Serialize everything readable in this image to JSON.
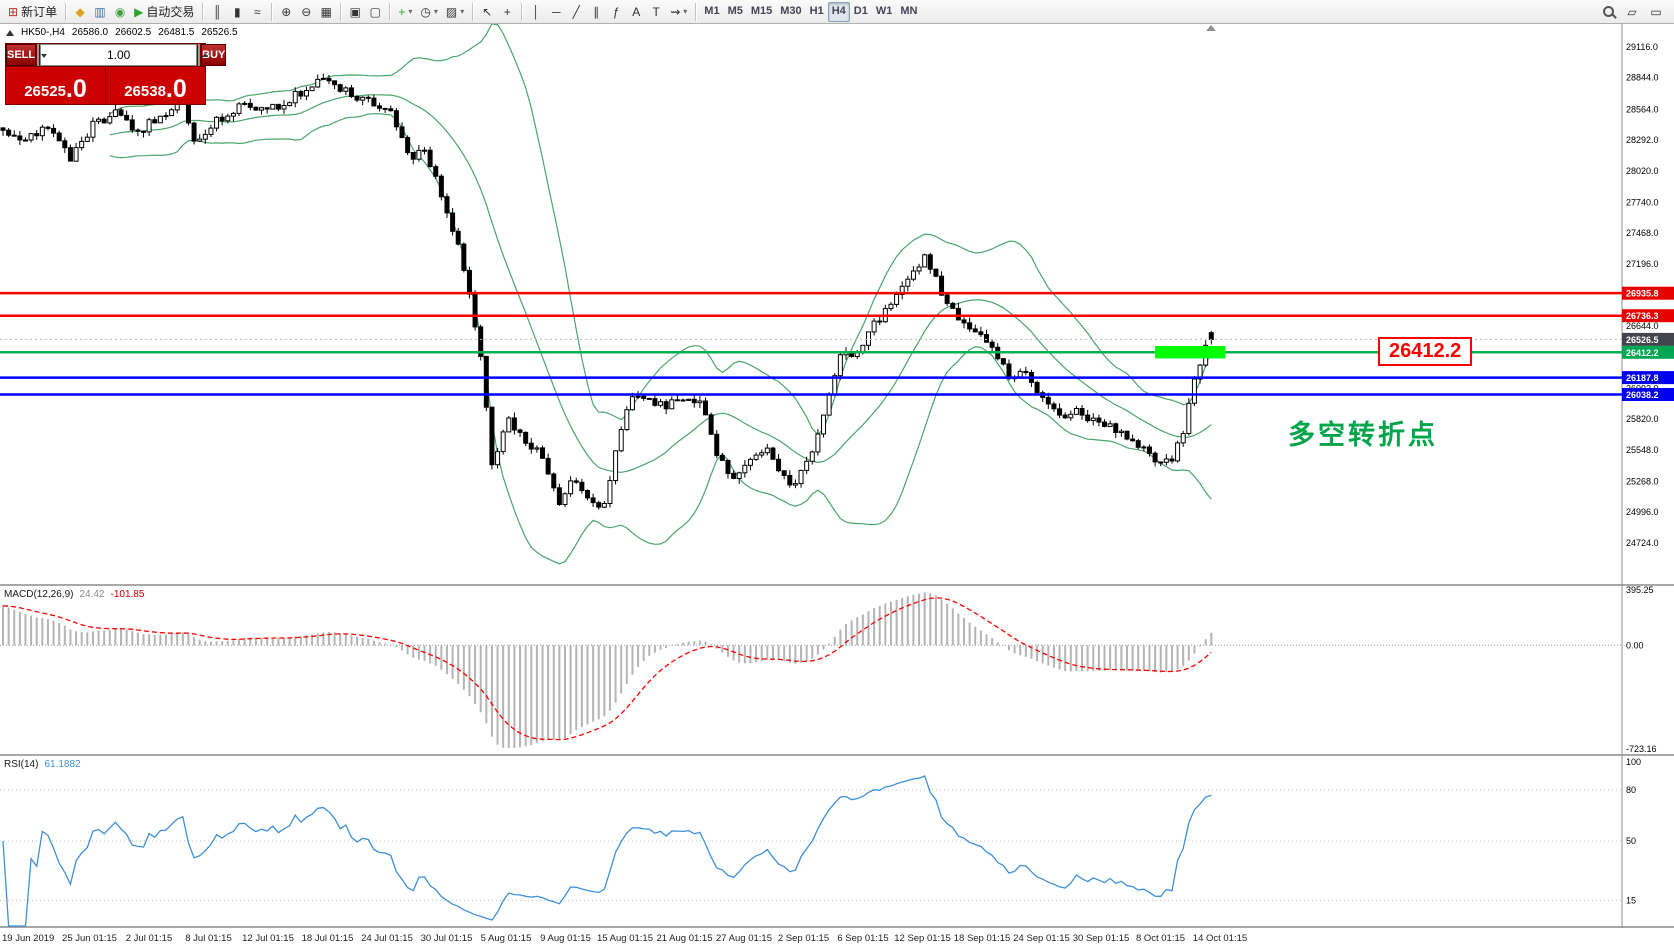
{
  "colors": {
    "panel_red": "#cc0000",
    "line_red": "#ff0000",
    "line_blue": "#0000ff",
    "line_green": "#00b050",
    "highlight_green": "#00ff00",
    "bollinger_green": "#4aa56a",
    "rsi_blue": "#3e8fd8",
    "macd_histogram_gray": "#b4b4b4",
    "macd_signal_red": "#ff0000"
  },
  "toolbar": {
    "dropdown_glyph": "▾",
    "items": [
      {
        "name": "new-order-button",
        "glyph": "⊞",
        "color": "#c03030",
        "label": "新订单"
      },
      {
        "type": "sep"
      },
      {
        "name": "profiles-icon",
        "glyph": "◆",
        "color": "#dfa220"
      },
      {
        "name": "charts-icon",
        "glyph": "▥",
        "color": "#4a6fa5"
      },
      {
        "name": "refresh-icon",
        "glyph": "◉",
        "color": "#3f9e3f"
      },
      {
        "name": "autotrading-button",
        "glyph": "▶",
        "color": "#2fa52f",
        "label": "自动交易"
      },
      {
        "type": "sep"
      },
      {
        "name": "bar-chart-icon",
        "glyph": "║"
      },
      {
        "name": "candlestick-chart-icon",
        "glyph": "▮"
      },
      {
        "name": "line-chart-icon",
        "glyph": "≈"
      },
      {
        "type": "sep"
      },
      {
        "name": "zoom-in-icon",
        "glyph": "⊕"
      },
      {
        "name": "zoom-out-icon",
        "glyph": "⊖"
      },
      {
        "name": "tile-windows-icon",
        "glyph": "▦"
      },
      {
        "type": "sep"
      },
      {
        "name": "auto-arrange-icon",
        "glyph": "▣"
      },
      {
        "name": "cascade-windows-icon",
        "glyph": "▢"
      },
      {
        "type": "sep"
      },
      {
        "name": "add-indicator-button",
        "glyph": "+",
        "color": "#2fa52f",
        "dropdown": true
      },
      {
        "name": "period-selector-button",
        "glyph": "◷",
        "dropdown": true
      },
      {
        "name": "template-button",
        "glyph": "▨",
        "dropdown": true
      },
      {
        "type": "sep"
      },
      {
        "name": "cursor-icon",
        "glyph": "↖"
      },
      {
        "name": "crosshair-icon",
        "glyph": "+"
      },
      {
        "type": "sep"
      },
      {
        "name": "vertical-line-icon",
        "glyph": "│"
      },
      {
        "name": "horizontal-line-icon",
        "glyph": "─"
      },
      {
        "name": "trendline-icon",
        "glyph": "╱"
      },
      {
        "name": "channel-icon",
        "glyph": "∥"
      },
      {
        "name": "fibonacci-icon",
        "glyph": "ƒ"
      },
      {
        "name": "text-icon",
        "glyph": "A"
      },
      {
        "name": "text-label-icon",
        "glyph": "T"
      },
      {
        "name": "arrows-button",
        "glyph": "⇝",
        "dropdown": true
      },
      {
        "type": "sep"
      },
      {
        "name": "timeframe-m1-button",
        "glyph": "M1",
        "tf": true
      },
      {
        "name": "timeframe-m5-button",
        "glyph": "M5",
        "tf": true
      },
      {
        "name": "timeframe-m15-button",
        "glyph": "M15",
        "tf": true
      },
      {
        "name": "timeframe-m30-button",
        "glyph": "M30",
        "tf": true
      },
      {
        "name": "timeframe-h1-button",
        "glyph": "H1",
        "tf": true
      },
      {
        "name": "timeframe-h4-button",
        "glyph": "H4",
        "tf": true,
        "active": true
      },
      {
        "name": "timeframe-d1-button",
        "glyph": "D1",
        "tf": true
      },
      {
        "name": "timeframe-w1-button",
        "glyph": "W1",
        "tf": true
      },
      {
        "name": "timeframe-mn-button",
        "glyph": "MN",
        "tf": true
      }
    ],
    "right_items": [
      {
        "name": "search-icon",
        "search": true
      },
      {
        "name": "fullscreen-icon",
        "glyph": "▱"
      },
      {
        "name": "new-window-icon",
        "glyph": "▭"
      }
    ]
  },
  "chart_header": {
    "symbol": "HK50-,H4",
    "open": "26586.0",
    "high": "26602.5",
    "low": "26481.5",
    "close": "26526.5"
  },
  "trade_panel": {
    "sell_label": "SELL",
    "buy_label": "BUY",
    "volume": "1.00",
    "sell_price_main": "26525",
    "sell_price_big": ".0",
    "buy_price_main": "26538",
    "buy_price_big": ".0"
  },
  "macd": {
    "label": "MACD(12,26,9)",
    "value": "24.42",
    "signal": "-101.85"
  },
  "rsi": {
    "label": "RSI(14)",
    "value": "61.1882"
  },
  "annotations": {
    "price_callout": "26412.2",
    "turning_point": "多空转折点"
  },
  "chart_data": {
    "type": "candlestick",
    "title": "HK50-,H4",
    "candle_count": 216,
    "last_candle": {
      "open": 26586.0,
      "high": 26602.5,
      "low": 26481.5,
      "close": 26526.5
    },
    "price_axis": {
      "min": 24360,
      "max": 29320,
      "ticks": [
        "29116.0",
        "28844.0",
        "28564.0",
        "28292.0",
        "28020.0",
        "27740.0",
        "27468.0",
        "27196.0",
        "26644.0",
        "26092.0",
        "25820.0",
        "25548.0",
        "25268.0",
        "24996.0",
        "24724.0"
      ],
      "badges": [
        {
          "price": 26935.8,
          "text": "26935.8",
          "color": "#e60000"
        },
        {
          "price": 26736.3,
          "text": "26736.3",
          "color": "#e60000"
        },
        {
          "price": 26526.5,
          "text": "26526.5",
          "color": "#44444f"
        },
        {
          "price": 26412.2,
          "text": "26412.2",
          "color": "#00a651"
        },
        {
          "price": 26187.8,
          "text": "26187.8",
          "color": "#0000ee"
        },
        {
          "price": 26038.2,
          "text": "26038.2",
          "color": "#0000ee"
        }
      ]
    },
    "hlines": [
      {
        "price": 26935.8,
        "color": "#ff0000",
        "width": 2.5,
        "name": "resistance-line-1"
      },
      {
        "price": 26736.3,
        "color": "#ff0000",
        "width": 2.5,
        "name": "resistance-line-2"
      },
      {
        "price": 26412.2,
        "color": "#00b050",
        "width": 2.5,
        "name": "pivot-line"
      },
      {
        "price": 26187.8,
        "color": "#0000ff",
        "width": 2.5,
        "name": "support-line-1"
      },
      {
        "price": 26038.2,
        "color": "#0000ff",
        "width": 2.5,
        "name": "support-line-2"
      }
    ],
    "highlight_rect": {
      "from_index": 205,
      "to_index": 217.5,
      "price_top": 26468,
      "price_bottom": 26358,
      "color": "#00ff00"
    },
    "bollinger": {
      "period": 20,
      "deviation": 2,
      "color": "#4aa56a"
    },
    "price_waypoints": [
      [
        0,
        28400
      ],
      [
        4,
        28300
      ],
      [
        8,
        28430
      ],
      [
        12,
        28120
      ],
      [
        16,
        28420
      ],
      [
        20,
        28520
      ],
      [
        24,
        28370
      ],
      [
        28,
        28500
      ],
      [
        32,
        28620
      ],
      [
        34,
        28300
      ],
      [
        38,
        28460
      ],
      [
        42,
        28600
      ],
      [
        46,
        28560
      ],
      [
        50,
        28620
      ],
      [
        55,
        28780
      ],
      [
        58,
        28820
      ],
      [
        62,
        28700
      ],
      [
        66,
        28620
      ],
      [
        69,
        28550
      ],
      [
        72,
        28150
      ],
      [
        75,
        28180
      ],
      [
        78,
        27820
      ],
      [
        81,
        27350
      ],
      [
        83,
        26950
      ],
      [
        85,
        26400
      ],
      [
        87,
        25420
      ],
      [
        90,
        25820
      ],
      [
        93,
        25620
      ],
      [
        96,
        25480
      ],
      [
        99,
        25100
      ],
      [
        102,
        25300
      ],
      [
        105,
        25050
      ],
      [
        107,
        25100
      ],
      [
        110,
        25720
      ],
      [
        112,
        26040
      ],
      [
        115,
        25980
      ],
      [
        118,
        25950
      ],
      [
        121,
        25990
      ],
      [
        124,
        25980
      ],
      [
        127,
        25520
      ],
      [
        130,
        25270
      ],
      [
        133,
        25450
      ],
      [
        136,
        25560
      ],
      [
        139,
        25300
      ],
      [
        141,
        25250
      ],
      [
        144,
        25500
      ],
      [
        146,
        25850
      ],
      [
        149,
        26380
      ],
      [
        152,
        26420
      ],
      [
        155,
        26650
      ],
      [
        158,
        26850
      ],
      [
        161,
        27060
      ],
      [
        164,
        27280
      ],
      [
        167,
        26950
      ],
      [
        170,
        26700
      ],
      [
        173,
        26600
      ],
      [
        176,
        26450
      ],
      [
        179,
        26200
      ],
      [
        182,
        26230
      ],
      [
        185,
        26000
      ],
      [
        188,
        25850
      ],
      [
        191,
        25900
      ],
      [
        194,
        25800
      ],
      [
        197,
        25740
      ],
      [
        200,
        25680
      ],
      [
        203,
        25540
      ],
      [
        206,
        25420
      ],
      [
        208,
        25480
      ],
      [
        210,
        25700
      ],
      [
        212,
        26150
      ],
      [
        214,
        26440
      ],
      [
        215,
        26520
      ]
    ],
    "macd": {
      "scale_top": "395.25",
      "scale_zero": "0.00",
      "scale_bottom": "-723.16"
    },
    "rsi": {
      "levels": [
        80,
        50,
        15
      ],
      "scale": [
        "100",
        "80",
        "50",
        "15"
      ]
    },
    "time_labels": [
      "19 Jun 2019",
      "25 Jun 01:15",
      "2 Jul 01:15",
      "8 Jul 01:15",
      "12 Jul 01:15",
      "18 Jul 01:15",
      "24 Jul 01:15",
      "30 Jul 01:15",
      "5 Aug 01:15",
      "9 Aug 01:15",
      "15 Aug 01:15",
      "21 Aug 01:15",
      "27 Aug 01:15",
      "2 Sep 01:15",
      "6 Sep 01:15",
      "12 Sep 01:15",
      "18 Sep 01:15",
      "24 Sep 01:15",
      "30 Sep 01:15",
      "8 Oct 01:15",
      "14 Oct 01:15"
    ]
  }
}
